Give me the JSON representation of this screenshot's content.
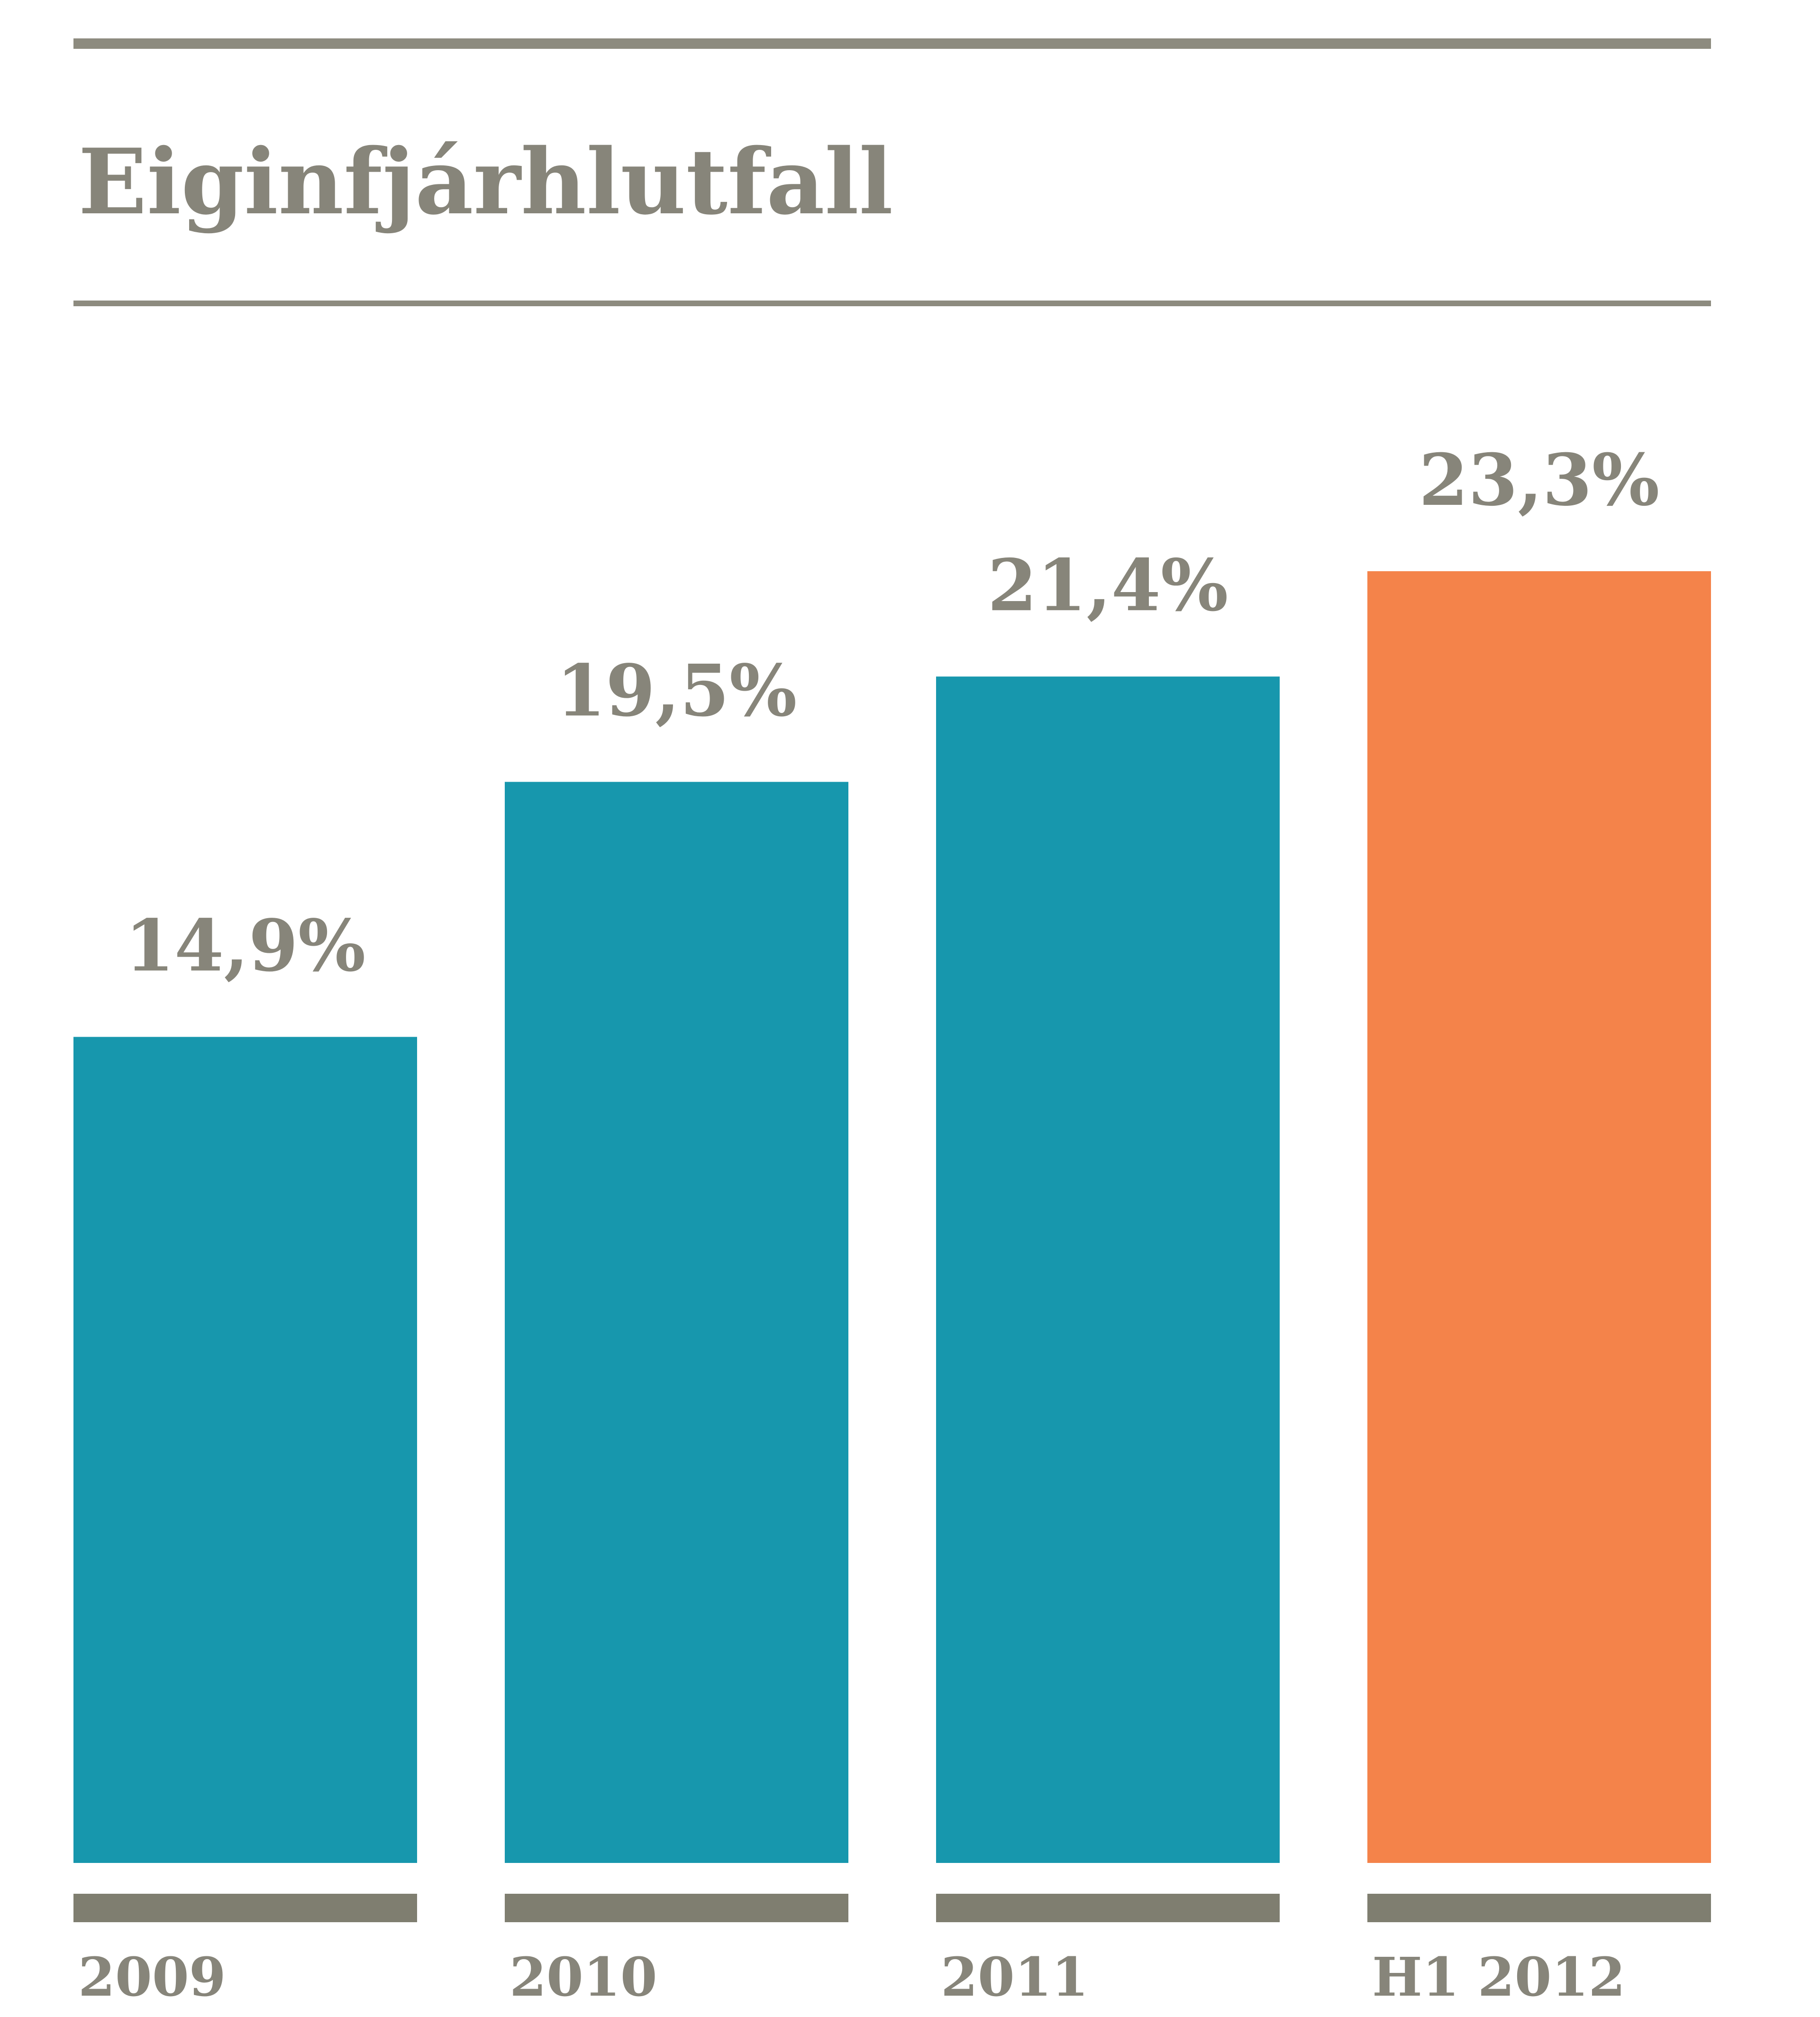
{
  "chart_data": {
    "type": "bar",
    "title": "Eiginfjárhlutfall",
    "categories": [
      "2009",
      "2010",
      "2011",
      "H1 2012"
    ],
    "values": [
      14.9,
      19.5,
      21.4,
      23.3
    ],
    "value_labels": [
      "14,9%",
      "19,5%",
      "21,4%",
      "23,3%"
    ],
    "ylim": [
      0,
      23.3
    ],
    "grid": false,
    "legend": "none"
  },
  "colors": {
    "bar": "#1797ad",
    "highlight_bar": "#f4834a",
    "text": "#87857a",
    "rule": "#8d8b7f",
    "baseline": "#7f7e70"
  }
}
